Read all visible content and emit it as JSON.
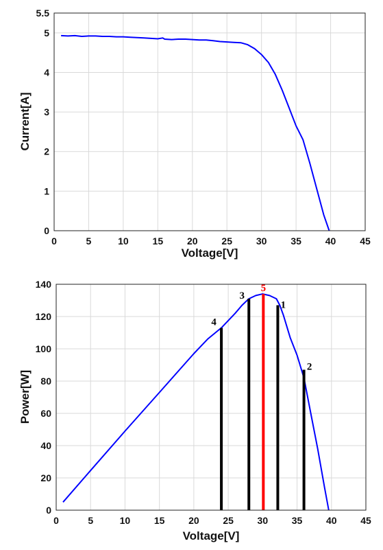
{
  "chart_data": [
    {
      "type": "line",
      "xlabel": "Voltage[V]",
      "ylabel": "Current[A]",
      "xlim": [
        0,
        45
      ],
      "ylim": [
        0,
        5.5
      ],
      "grid": true,
      "xticks": [
        "0",
        "5",
        "10",
        "15",
        "20",
        "25",
        "30",
        "35",
        "40",
        "45"
      ],
      "yticks": [
        "0",
        "1",
        "2",
        "3",
        "4",
        "5",
        "5.5"
      ],
      "series": [
        {
          "color": "#0000ff",
          "x": [
            1,
            2,
            3,
            4,
            5,
            6,
            7,
            8,
            9,
            10,
            11,
            12,
            13,
            14,
            15,
            15.7,
            16,
            17,
            18,
            19,
            20,
            21,
            22,
            23,
            24,
            25,
            26,
            27,
            28,
            29,
            30,
            31,
            32,
            33,
            34,
            35,
            36,
            37,
            38,
            39,
            39.8
          ],
          "y": [
            4.93,
            4.92,
            4.93,
            4.91,
            4.92,
            4.92,
            4.91,
            4.91,
            4.9,
            4.9,
            4.89,
            4.88,
            4.87,
            4.86,
            4.85,
            4.87,
            4.84,
            4.83,
            4.84,
            4.84,
            4.83,
            4.82,
            4.82,
            4.8,
            4.78,
            4.77,
            4.76,
            4.75,
            4.7,
            4.6,
            4.45,
            4.25,
            3.95,
            3.55,
            3.1,
            2.65,
            2.3,
            1.7,
            1.05,
            0.4,
            0
          ]
        }
      ]
    },
    {
      "type": "line",
      "xlabel": "Voltage[V]",
      "ylabel": "Power[W]",
      "xlim": [
        0,
        45
      ],
      "ylim": [
        0,
        140
      ],
      "grid": true,
      "xticks": [
        "0",
        "5",
        "10",
        "15",
        "20",
        "25",
        "30",
        "35",
        "40",
        "45"
      ],
      "yticks": [
        "0",
        "20",
        "40",
        "60",
        "80",
        "100",
        "120",
        "140"
      ],
      "series": [
        {
          "color": "#0000ff",
          "x": [
            1,
            5,
            10,
            15,
            20,
            22,
            24,
            26,
            27,
            28,
            29,
            30,
            31,
            32,
            32.5,
            33,
            34,
            35,
            36,
            37,
            38,
            39,
            39.6
          ],
          "y": [
            5,
            24.6,
            49,
            73,
            97,
            106,
            113,
            122,
            127,
            131,
            133,
            134,
            133,
            131,
            127,
            121,
            107,
            96,
            82,
            60,
            38,
            14,
            0
          ]
        }
      ],
      "markers": [
        {
          "label": "1",
          "x": 32.2,
          "y": 127,
          "color": "#000000"
        },
        {
          "label": "2",
          "x": 36,
          "y": 87,
          "color": "#000000"
        },
        {
          "label": "3",
          "x": 28,
          "y": 131,
          "color": "#000000"
        },
        {
          "label": "4",
          "x": 24,
          "y": 113,
          "color": "#000000"
        },
        {
          "label": "5",
          "x": 30.1,
          "y": 134,
          "color": "#ff0000"
        }
      ]
    }
  ]
}
